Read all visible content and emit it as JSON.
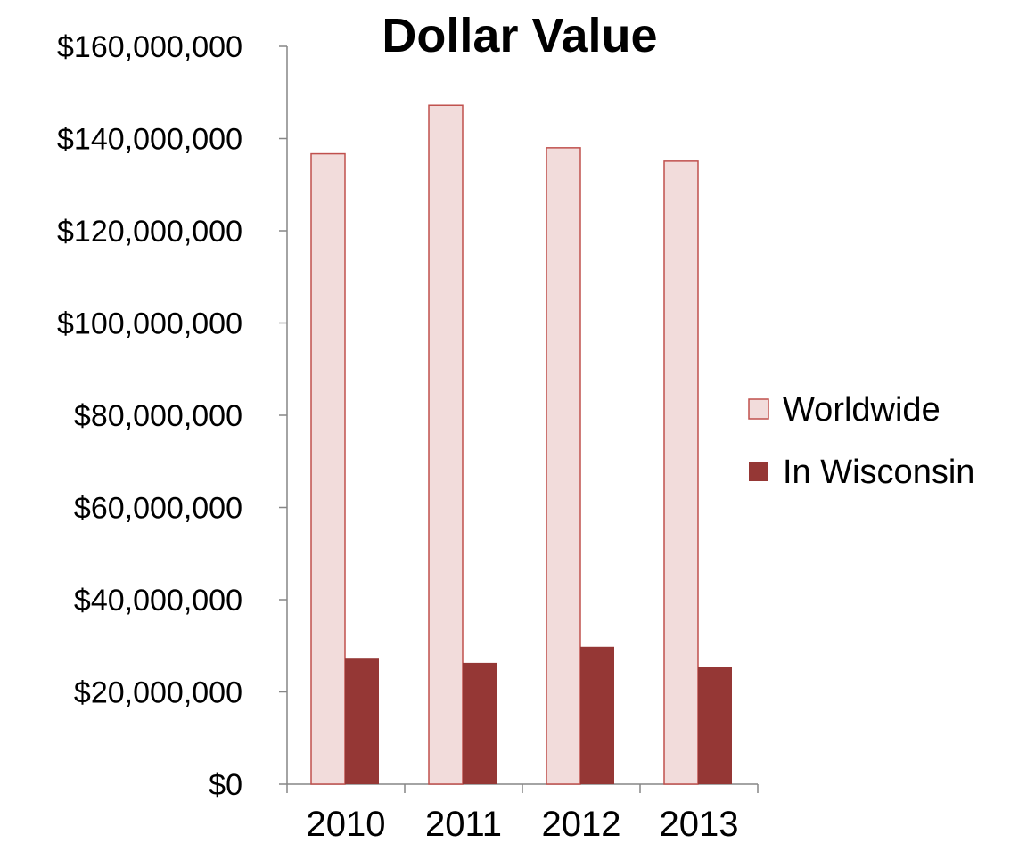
{
  "chart_data": {
    "type": "bar",
    "title": "Dollar Value",
    "xlabel": "",
    "ylabel": "",
    "categories": [
      "2010",
      "2011",
      "2012",
      "2013"
    ],
    "series": [
      {
        "name": "Worldwide",
        "values": [
          136700000,
          147200000,
          138000000,
          135100000
        ],
        "fill": "#f2dcdb",
        "stroke": "#c0504d"
      },
      {
        "name": "In Wisconsin",
        "values": [
          27400000,
          26300000,
          29800000,
          25500000
        ],
        "fill": "#953735",
        "stroke": "#953735"
      }
    ],
    "ylim": [
      0,
      160000000
    ],
    "yticks": [
      0,
      20000000,
      40000000,
      60000000,
      80000000,
      100000000,
      120000000,
      140000000,
      160000000
    ],
    "ytick_labels": [
      "$0",
      "$20,000,000",
      "$40,000,000",
      "$60,000,000",
      "$80,000,000",
      "$100,000,000",
      "$120,000,000",
      "$140,000,000",
      "$160,000,000"
    ],
    "grid": false,
    "legend_position": "right"
  }
}
